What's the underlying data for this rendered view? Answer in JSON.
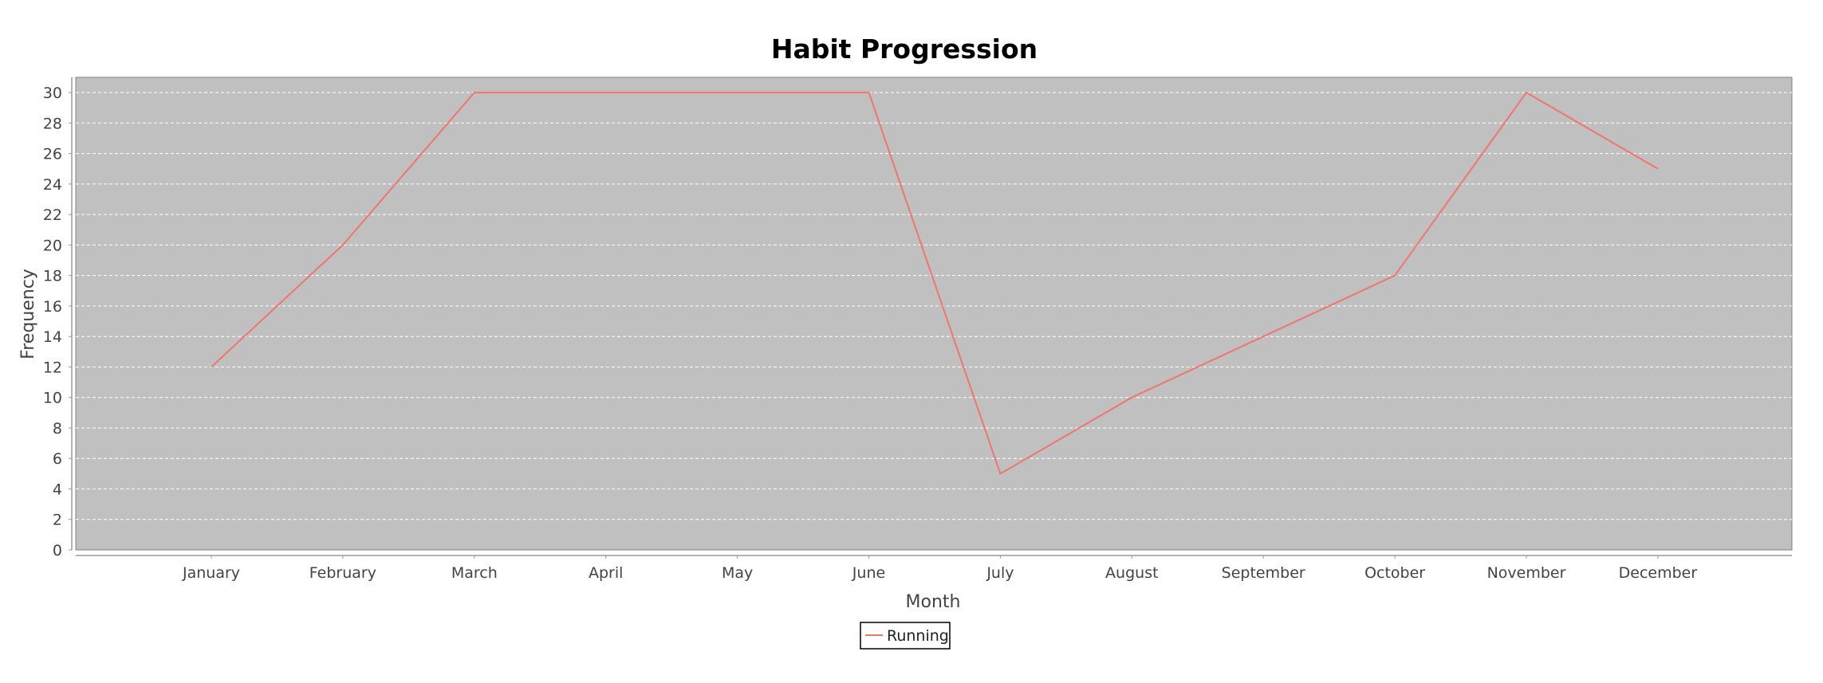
{
  "chart_data": {
    "type": "line",
    "title": "Habit Progression",
    "xlabel": "Month",
    "ylabel": "Frequency",
    "categories": [
      "January",
      "February",
      "March",
      "April",
      "May",
      "June",
      "July",
      "August",
      "September",
      "October",
      "November",
      "December"
    ],
    "series": [
      {
        "name": "Running",
        "values": [
          12,
          20,
          30,
          30,
          30,
          30,
          5,
          10,
          14,
          18,
          30,
          25
        ],
        "color": "#f0756f"
      }
    ],
    "ylim": [
      0,
      31
    ],
    "yticks": [
      0,
      2,
      4,
      6,
      8,
      10,
      12,
      14,
      16,
      18,
      20,
      22,
      24,
      26,
      28,
      30
    ],
    "grid": true,
    "legend_position": "bottom-center",
    "plot_background": "#c0c0c0",
    "grid_color": "#ffffff"
  }
}
